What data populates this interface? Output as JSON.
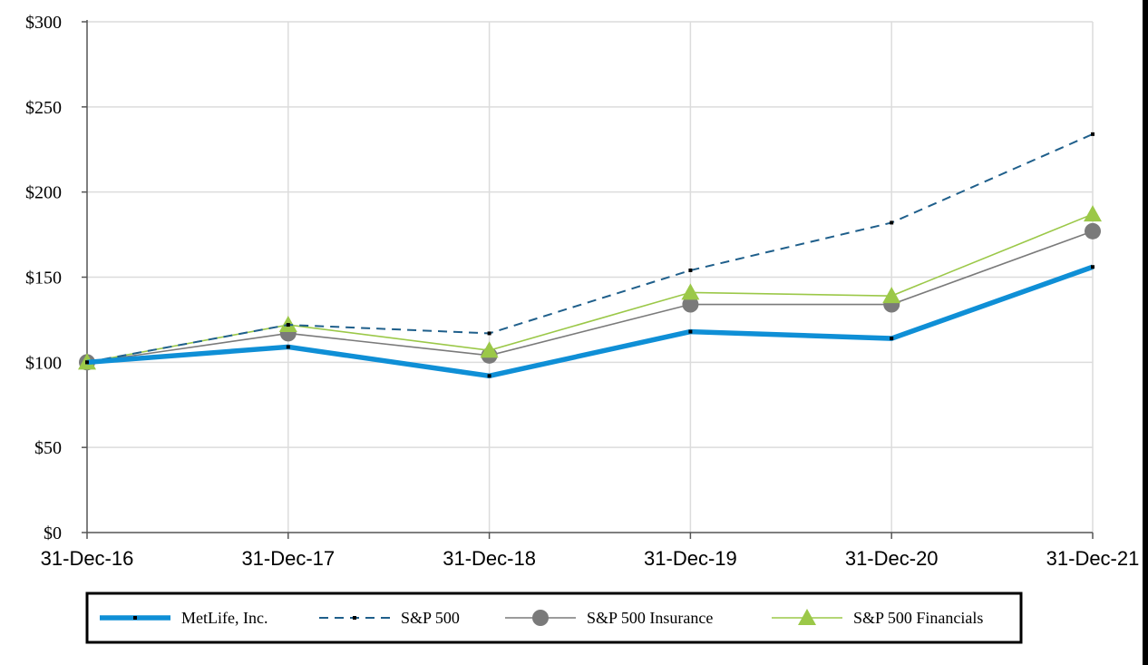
{
  "chart_data": {
    "type": "line",
    "title": "",
    "xlabel": "",
    "ylabel": "",
    "categories": [
      "31-Dec-16",
      "31-Dec-17",
      "31-Dec-18",
      "31-Dec-19",
      "31-Dec-20",
      "31-Dec-21"
    ],
    "ylim": [
      0,
      300
    ],
    "yticks": [
      0,
      50,
      100,
      150,
      200,
      250,
      300
    ],
    "ytick_labels": [
      "$0",
      "$50",
      "$100",
      "$150",
      "$200",
      "$250",
      "$300"
    ],
    "grid": true,
    "legend_position": "bottom",
    "series": [
      {
        "name": "MetLife, Inc.",
        "values": [
          100,
          109,
          92,
          118,
          114,
          156
        ],
        "color": "#0f8fd6",
        "style": "solid-thick",
        "marker": "small-square"
      },
      {
        "name": "S&P 500",
        "values": [
          100,
          122,
          117,
          154,
          182,
          234
        ],
        "color": "#1f5f8b",
        "style": "dashed",
        "marker": "small-square"
      },
      {
        "name": "S&P 500 Insurance",
        "values": [
          100,
          117,
          104,
          134,
          134,
          177
        ],
        "color": "#7a7a7a",
        "style": "solid",
        "marker": "circle"
      },
      {
        "name": "S&P 500 Financials",
        "values": [
          100,
          122,
          107,
          141,
          139,
          187
        ],
        "color": "#9bc848",
        "style": "solid",
        "marker": "triangle"
      }
    ]
  }
}
